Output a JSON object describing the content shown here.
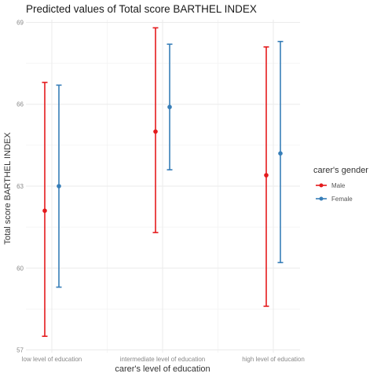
{
  "chart_data": {
    "type": "scatter",
    "title": "Predicted values of Total score BARTHEL INDEX",
    "xlabel": "carer's level of education",
    "ylabel": "Total score BARTHEL INDEX",
    "categories": [
      "low level of education",
      "intermediate level of education",
      "high level of education"
    ],
    "ylim": [
      56.9,
      69.1
    ],
    "yticks": [
      57,
      60,
      63,
      66,
      69
    ],
    "grid": true,
    "legend": {
      "title": "carer's gender",
      "position": "right"
    },
    "series": [
      {
        "name": "Male",
        "color": "#e41a1c",
        "values": [
          62.1,
          65.0,
          63.4
        ],
        "lower": [
          57.5,
          61.3,
          58.6
        ],
        "upper": [
          66.8,
          68.8,
          68.1
        ]
      },
      {
        "name": "Female",
        "color": "#377eb8",
        "values": [
          63.0,
          65.9,
          64.2
        ],
        "lower": [
          59.3,
          63.6,
          60.2
        ],
        "upper": [
          66.7,
          68.2,
          68.3
        ]
      }
    ]
  }
}
